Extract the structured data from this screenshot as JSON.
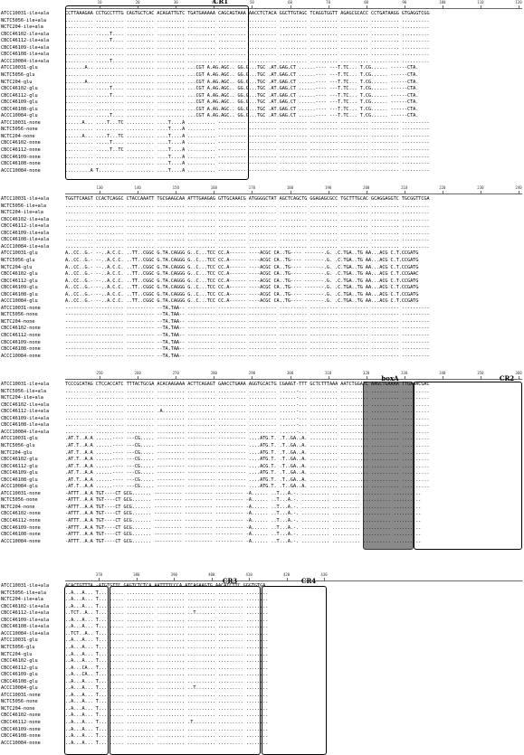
{
  "samples": [
    "ATCC10031-ile+ala",
    "NCTC5056-ile+ala",
    "NCTC204-ile+ala",
    "CBCC46102-ile+ala",
    "CBCC46112-ile+ala",
    "CBCC46109-ile+ala",
    "CBCC46108-ile+ala",
    "ACCC10084-ile+ala",
    "ATCC10031-glu",
    "NCTC5056-glu",
    "NCTC204-glu",
    "CBCC46102-glu",
    "CBCC46112-glu",
    "CBCC46109-glu",
    "CBCC46108-glu",
    "ACCC10084-glu",
    "ATCC10031-none",
    "NCTC5056-none",
    "NCTC204-none",
    "CBCC46102-none",
    "CBCC46112-none",
    "CBCC46109-none",
    "CBCC46108-none",
    "ACCC10084-none"
  ],
  "blocks": [
    {
      "ruler_labels": [
        "10",
        "20",
        "30",
        "40",
        "50",
        "60",
        "70",
        "80",
        "90",
        "100",
        "110",
        "120"
      ],
      "rows": [
        "CCTTAAAGAA CCTGCCTTTG CAGTGCTCAC ACAGATTGTC TGATGAAAAA CAGCAGTAAA AACCTCTACA GGCTTGTAGC TCAGGTGGTT AGAGCGCACC CCTGATAAGG GTGAGGTCGG",
        ".......... .......... .......... .......... .......... .......... .......... .......... .......... .......... .......... ..........",
        ".......... .......... .......... .......... .......... .......... .......... .......... .......... .......... .......... ..........",
        ".......... .....T.... .......... .......... .......... .......... .......... .......... .......... .......... .......... ..........",
        ".......... .....T.... .......... .......... .......... .......... .......... .......... .......... .......... .......... ..........",
        ".......... .......... .......... .......... .......... .......... .......... .......... .......... .......... .......... ..........",
        ".......... .......... .......... .......... .......... .......... .......... .......... .......... .......... .......... ..........",
        ".......... .....T.... .......... .......... .......... .......... .......... .......... .......... .......... .......... ..........",
        ".......A.. .......... .......... .......... ...CGT A.AG.AGC.. GG.G...TGC .AT.GAG.CT ......---- ---T.TC... T.CG...... ------CTA.",
        ".......... .......... .......... .......... ...CGT A.AG.AGC.. GG.G...TGC .AT.GAG.CT ......---- ---T.TC... T.CG...... ------CTA.",
        ".......A.. .......... .......... .......... ...CGT A.AG.AGC.. GG.G...TGC .AT.GAG.CT ......---- ---T.TC... T.CG...... ------CTA.",
        ".......... .....T.... .......... .......... ...CGT A.AG.AGC.. GG.G...TGC .AT.GAG.CT ......---- ---T.TC... T.CG...... ------CTA.",
        ".......... .....T.... .......... .......... ...CGT A.AG.AGC.. GG.G...TGC .AT.GAG.CT ......---- ---T.TC... T.CG...... ------CTA.",
        ".......... .......... .......... .......... ...CGT A.AG.AGC.. GG.G...TGC .AT.GAG.CT ......---- ---T.TC... T.CG...... ------CTA.",
        ".......... .......... .......... .......... ...CGT A.AG.AGC.. GG.G...TGC .AT.GAG.CT ......---- ---T.TC... T.CG...... ------CTA.",
        ".......... .....T.... .......... .......... ...CGT A.AG.AGC.. GG.G...TGC .AT.GAG.CT ......---- ---T.TC... T.CG...... ------CTA.",
        "......A... ....T...TC .......... ....T....A .......... ---------- ---------- ---------- ---------- ---------- ---------- ----------",
        ".......... .......... .......... ....T....A .......... ---------- ---------- ---------- ---------- ---------- ---------- ----------",
        "......A... ....T...TC .......... ....T....A .......... ---------- ---------- ---------- ---------- ---------- ---------- ----------",
        ".......... .....T.... .......... ....T....A .......... ---------- ---------- ---------- ---------- ---------- ---------- ----------",
        ".......... .....T..TC .......... ....T....A .......... ---------- ---------- ---------- ---------- ---------- ---------- ----------",
        ".......... .......... .......... ....T....A .......... ---------- ---------- ---------- ---------- ---------- ---------- ----------",
        ".......... .......... .......... ....T....A .......... ---------- ---------- ---------- ---------- ---------- ---------- ----------",
        ".........A T......... .......... ....T....A .......... ---------- ---------- ---------- ---------- ---------- ---------- ----------"
      ],
      "regions": [
        {
          "label": "CR1"
        }
      ]
    },
    {
      "ruler_labels": [
        "130",
        "140",
        "150",
        "160",
        "170",
        "180",
        "190",
        "200",
        "210",
        "220",
        "230",
        "240"
      ],
      "rows": [
        "TGGTTCAAGT CCACTCAGGC CTACCAAATT TGCGAAGCAA ATTTGAAGAG GTTGCAAACG ATGGGGCTAT AGCTCAGCTG GGAGAGCGCC TGCTTTGCAC GCAGGAGGTC TGCGGTTCGA",
        ".......... .......... .......... .......... .......... .......... .......... .......... .......... .......... .......... ..........",
        ".......... .......... .......... .......... .......... .......... .......... .......... .......... .......... .......... ..........",
        ".......... .......... .......... .......... .......... .......... .......... .......... .......... .......... .......... ..........",
        ".......... .......... .......... .......... .......... .......... .......... .......... .......... .......... .......... ..........",
        ".......... .......... .......... .......... .......... .......... .......... .......... .......... .......... .......... ..........",
        ".......... .......... .......... .......... .......... .......... .......... .......... .......... .......... .......... ..........",
        ".......... .......... .......... .......... .......... .......... .......... .......... .......... .......... .......... ..........",
        "A..CC..G.- --..A.C.C. ..TT..CGGC G.TA.CAGGG G..C...TCC CC.A------ ----ACGC CA..TG---- -------.G. .C.TGA..TG AA...ACG C.T.CCGATG",
        "A..CC..G.- --..A.C.C. ..TT..CGGC G.TA.CAGGG G..C...TCC CC.A------ ----ACGC CA..TG---- -------.G. .C.TGA..TG AA...ACG C.T.CCGATG",
        "A..CC..G.- --..A.C.C. ..TT..CGGC G.TA.CAGGG G..C...TCC CC.A------ ----ACGC CA..TG---- -------.G. .C.TGA..TG AA...ACG C.T.CCGATG",
        "A..CC..G.- --..A.C.C. ..TT..CGGC G.TA.CAGGG G..C...TCC CC.A------ ----ACGC CA..TG---- -------.G. .C.TGA..TG AA...ACG C.T.CCGAAC",
        "A..CC..G.- --..A.C.C. ..TT..CGGC G.TA.CAGGG G..C...TCC CC.A------ ----ACGC CA..TG---- -------.G. .C.TGA..TG AA...ACG C.T.CCGATG",
        "A..CC..G.- --..A.C.C. ..TT..CGGC G.TA.CAGGG G..C...TCC CC.A------ ----ACGC CA..TG---- -------.G. .C.TGA..TG AA...ACG C.T.CCGATG",
        "A..CC..G.- --..A.C.C. ..TT..CGGC G.TA.CAGGG G..C...TCC CC.A------ ----ACGC CA..TG---- -------.G. .C.TGA..TG AA...ACG C.T.CCGATG",
        "A..CC..G.- --..A.C.C. ..TT..CGGC G.TA.CAGGG G..C...TCC CC.A------ ----ACGC CA..TG---- -------.G. .C.TGA..TG AA...ACG C.T.CCGATG",
        "---------- ---------- ---------- --TA.TAA-- ---------- ---------- ---------- ---------- ---------- ---------- ---------- ----------",
        "---------- ---------- ---------- --TA.TAA-- ---------- ---------- ---------- ---------- ---------- ---------- ---------- ----------",
        "---------- ---------- ---------- --TA.TAA-- ---------- ---------- ---------- ---------- ---------- ---------- ---------- ----------",
        "---------- ---------- ---------- --TA.TAA-- ---------- ---------- ---------- ---------- ---------- ---------- ---------- ----------",
        "---------- ---------- ---------- --TA.TAA-- ---------- ---------- ---------- ---------- ---------- ---------- ---------- ----------",
        "---------- ---------- ---------- --TA.TAA-- ---------- ---------- ---------- ---------- ---------- ---------- ---------- ----------",
        "---------- ---------- ---------- --TA.TAA-- ---------- ---------- ---------- ---------- ---------- ---------- ---------- ----------",
        "---------- ---------- ---------- --TA.TAA-- ---------- ---------- ---------- ---------- ---------- ---------- ---------- ----------"
      ],
      "regions": []
    },
    {
      "ruler_labels": [
        "250",
        "260",
        "270",
        "280",
        "290",
        "300",
        "310",
        "320",
        "330",
        "340",
        "350",
        "360"
      ],
      "rows": [
        "TCCCGCATAG CTCCACCATC TTTACTGCGA ACACAAGAAA ACTTCAGAGT GAACCTGAAA AGGTGCACTG CGAAGT-TTT GCTCTTTAAA AATCTGGATC AAGCTGAAAA TTGAAACGAC",
        ".......... .......... .......... .......... .......... .......... .......... ......-... .......... .......... .......... ..........",
        ".......... .......... .......... .......... .......... .......... .......... ......-... .......... .......... .......... ..........",
        ".......... .......... .......... .......... .......... .......... .......... ......-... .......... .......... .......... ..........",
        ".......... .......... .......... .A........ .......... .......... .......... ......-... .......... .......... .......... ..........",
        ".......... .......... .......... .......... .......... .......... .......... ......-... .......... .......... .......... ..........",
        ".......... .......... .......... .......... .......... .......... .......... ......-... .......... .......... .......... ..........",
        ".......... .......... .......... .......... .......... .......... .......... ......-... .......... .......... .......... ..........",
        ".AT.T..A.A ......---- ---CG..... ---------- ---------- ---------- ....ATG.T. .T..GA..A. .......... .......... .......... ..........",
        ".AT.T..A.A ......---- ---CG..... ---------- ---------- ---------- ....ATG.T. .T..GA..A. .......... .......... .......... ..........",
        ".AT.T..A.A ......---- ---CG..... ---------- ---------- ---------- ....ATG.T. .T..GA..A. .......... .......... .......... ..........",
        ".AT.T..A.A ......---- ---CG..... ---------- ---------- ---------- ....ATG.T. .T..GA..A. .......... .......... .......... ..........",
        ".AT.T..A.A ......---- ---CG..... ---------- ---------- ---------- ....ACG.T. .T..GA..A. .......... .......... .......... ..........",
        ".AT.T..A.A ......---- ---CG..... ---------- ---------- ---------- ....ATG.T. .T..GA..A. .......... .......... .......... ..........",
        ".AT.T..A.A ......---- ---CG..... ---------- ---------- ---------- ....ATG.T. .T..GA..A. .......... .......... .......... ..........",
        ".AT.T..A.A ......---- ---CG..... ---------- ---------- ---------- ....ATG.T. .T..GA..A. .......... .......... .......... ..........",
        "-ATTT..A.A TGT----CT GCG....... ---------- ---------- ---------- -A...... ..T...A.-. .......... .......... .......... ..........",
        "-ATTT..A.A TGT----CT GCG....... ---------- ---------- ---------- -A...... ..T...A.-. .......... .......... .......... ..........",
        "-ATTT..A.A TGT----CT GCG....... ---------- ---------- ---------- -A...... ..T...A.-. .......... .......... .......... ..........",
        "-ATTT..A.A TGT----CT GCG....... ---------- ---------- ---------- -A...... ..T...A.-. .......... .......... .......... ..........",
        "-ATTT..A.A TGT----CT GCG....... ---------- ---------- ---------- -A...... ..T...A.-. .......... .......... .......... ..........",
        "-ATTT..A.A TGT----CT GCG....... ---------- ---------- ---------- -A...... ..T...A.-. .......... .......... .......... ..........",
        "-ATTT..A.A TGT----CT GCG....... ---------- ---------- ---------- -A...... ..T...A.-. .......... .......... .......... ..........",
        "-ATTT..A.A TGT----CT GCG....... ---------- ---------- ---------- -A...... ..T...A.-. .......... .......... .......... .........."
      ],
      "regions": [
        {
          "label": "boxA"
        },
        {
          "label": "CR2"
        }
      ]
    },
    {
      "ruler_labels": [
        "370",
        "380",
        "390",
        "400",
        "410",
        "420",
        "430"
      ],
      "rows": [
        "ACACTGTTTA -ATGTGTTC GAGTCTCTCA AATTTTCCCA ATCAGAAGTG AACATCTTC GGGTGTGA",
        "..A...A... T......... .......... .......... .......... ......... ........",
        "..A...A... T......... .......... .......... .......... ......... ........",
        "..A...A... T......... .......... .......... .......... ......... ........",
        "..TCT..A.. T......... .......... .......... ..T....... ......... ........",
        "..A...A... T......... .......... .......... .......... ......... ........",
        "..A...A... T......... .......... .......... .......... ......... ........",
        "..TCT..A.. T......... .......... .......... .......... ......... ........",
        "..A...A... T......... .......... .......... .......... ......... ........",
        "..A...A... T......... .......... .......... .......... ......... ........",
        "..A...A... T......... .......... .......... .......... ......... ........",
        "..A...A... T......... .......... .......... .......... ......... ........",
        "..A...CA.. T......... .......... .......... .......... ......... ........",
        "..A...CA.. T......... .......... .......... .......... ......... ........",
        "..A...A... T......... .......... .......... .......... ......... ........",
        "..A...A... T......... .......... .......... ..T....... ......... ........",
        "..A...A... T......... .......... .......... .......... ......... ........",
        "..A...A... T......... .......... .......... .......... ......... ........",
        "..A...A... T......... .......... .......... .......... ......... ........",
        "..A...A... T......... .......... .......... .......... ......... ........",
        "..A...A... T......... .......... .......... .T........ ......... ........",
        "..A...A... T......... .......... .......... .......... ......... ........",
        "..A...A... T......... .......... .......... .......... ......... ........",
        "..A...A... T......... .......... .......... .......... ......... ........"
      ],
      "regions": [
        {
          "label": "CR3"
        },
        {
          "label": "CR4"
        }
      ]
    }
  ]
}
